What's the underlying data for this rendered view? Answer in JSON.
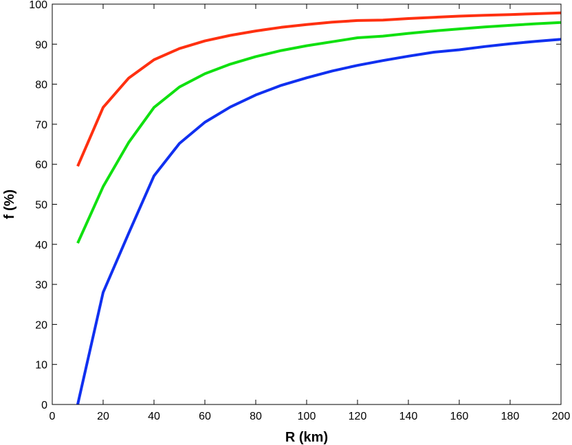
{
  "chart_data": {
    "type": "line",
    "title": "",
    "xlabel": "R (km)",
    "ylabel": "f (%)",
    "xlim": [
      0,
      200
    ],
    "ylim": [
      0,
      100
    ],
    "xticks": [
      0,
      20,
      40,
      60,
      80,
      100,
      120,
      140,
      160,
      180,
      200
    ],
    "yticks": [
      0,
      10,
      20,
      30,
      40,
      50,
      60,
      70,
      80,
      90,
      100
    ],
    "grid": false,
    "legend": "none",
    "x": [
      10,
      20,
      30,
      40,
      50,
      60,
      70,
      80,
      90,
      100,
      110,
      120,
      130,
      140,
      150,
      160,
      170,
      180,
      190,
      200
    ],
    "series": [
      {
        "color": "#ff3010",
        "values": [
          59.5,
          74.2,
          81.5,
          86.1,
          88.9,
          90.8,
          92.2,
          93.3,
          94.2,
          94.9,
          95.5,
          95.9,
          96.0,
          96.4,
          96.7,
          97.0,
          97.2,
          97.4,
          97.6,
          97.8
        ]
      },
      {
        "color": "#10e010",
        "values": [
          40.3,
          54.4,
          65.4,
          74.2,
          79.3,
          82.6,
          85.0,
          86.9,
          88.4,
          89.6,
          90.6,
          91.6,
          92.0,
          92.7,
          93.3,
          93.8,
          94.3,
          94.7,
          95.1,
          95.4
        ]
      },
      {
        "color": "#1030f0",
        "values": [
          0,
          28.0,
          42.7,
          57.1,
          65.2,
          70.5,
          74.3,
          77.3,
          79.7,
          81.6,
          83.3,
          84.7,
          85.9,
          87.0,
          88.0,
          88.6,
          89.4,
          90.1,
          90.7,
          91.2
        ]
      }
    ]
  }
}
